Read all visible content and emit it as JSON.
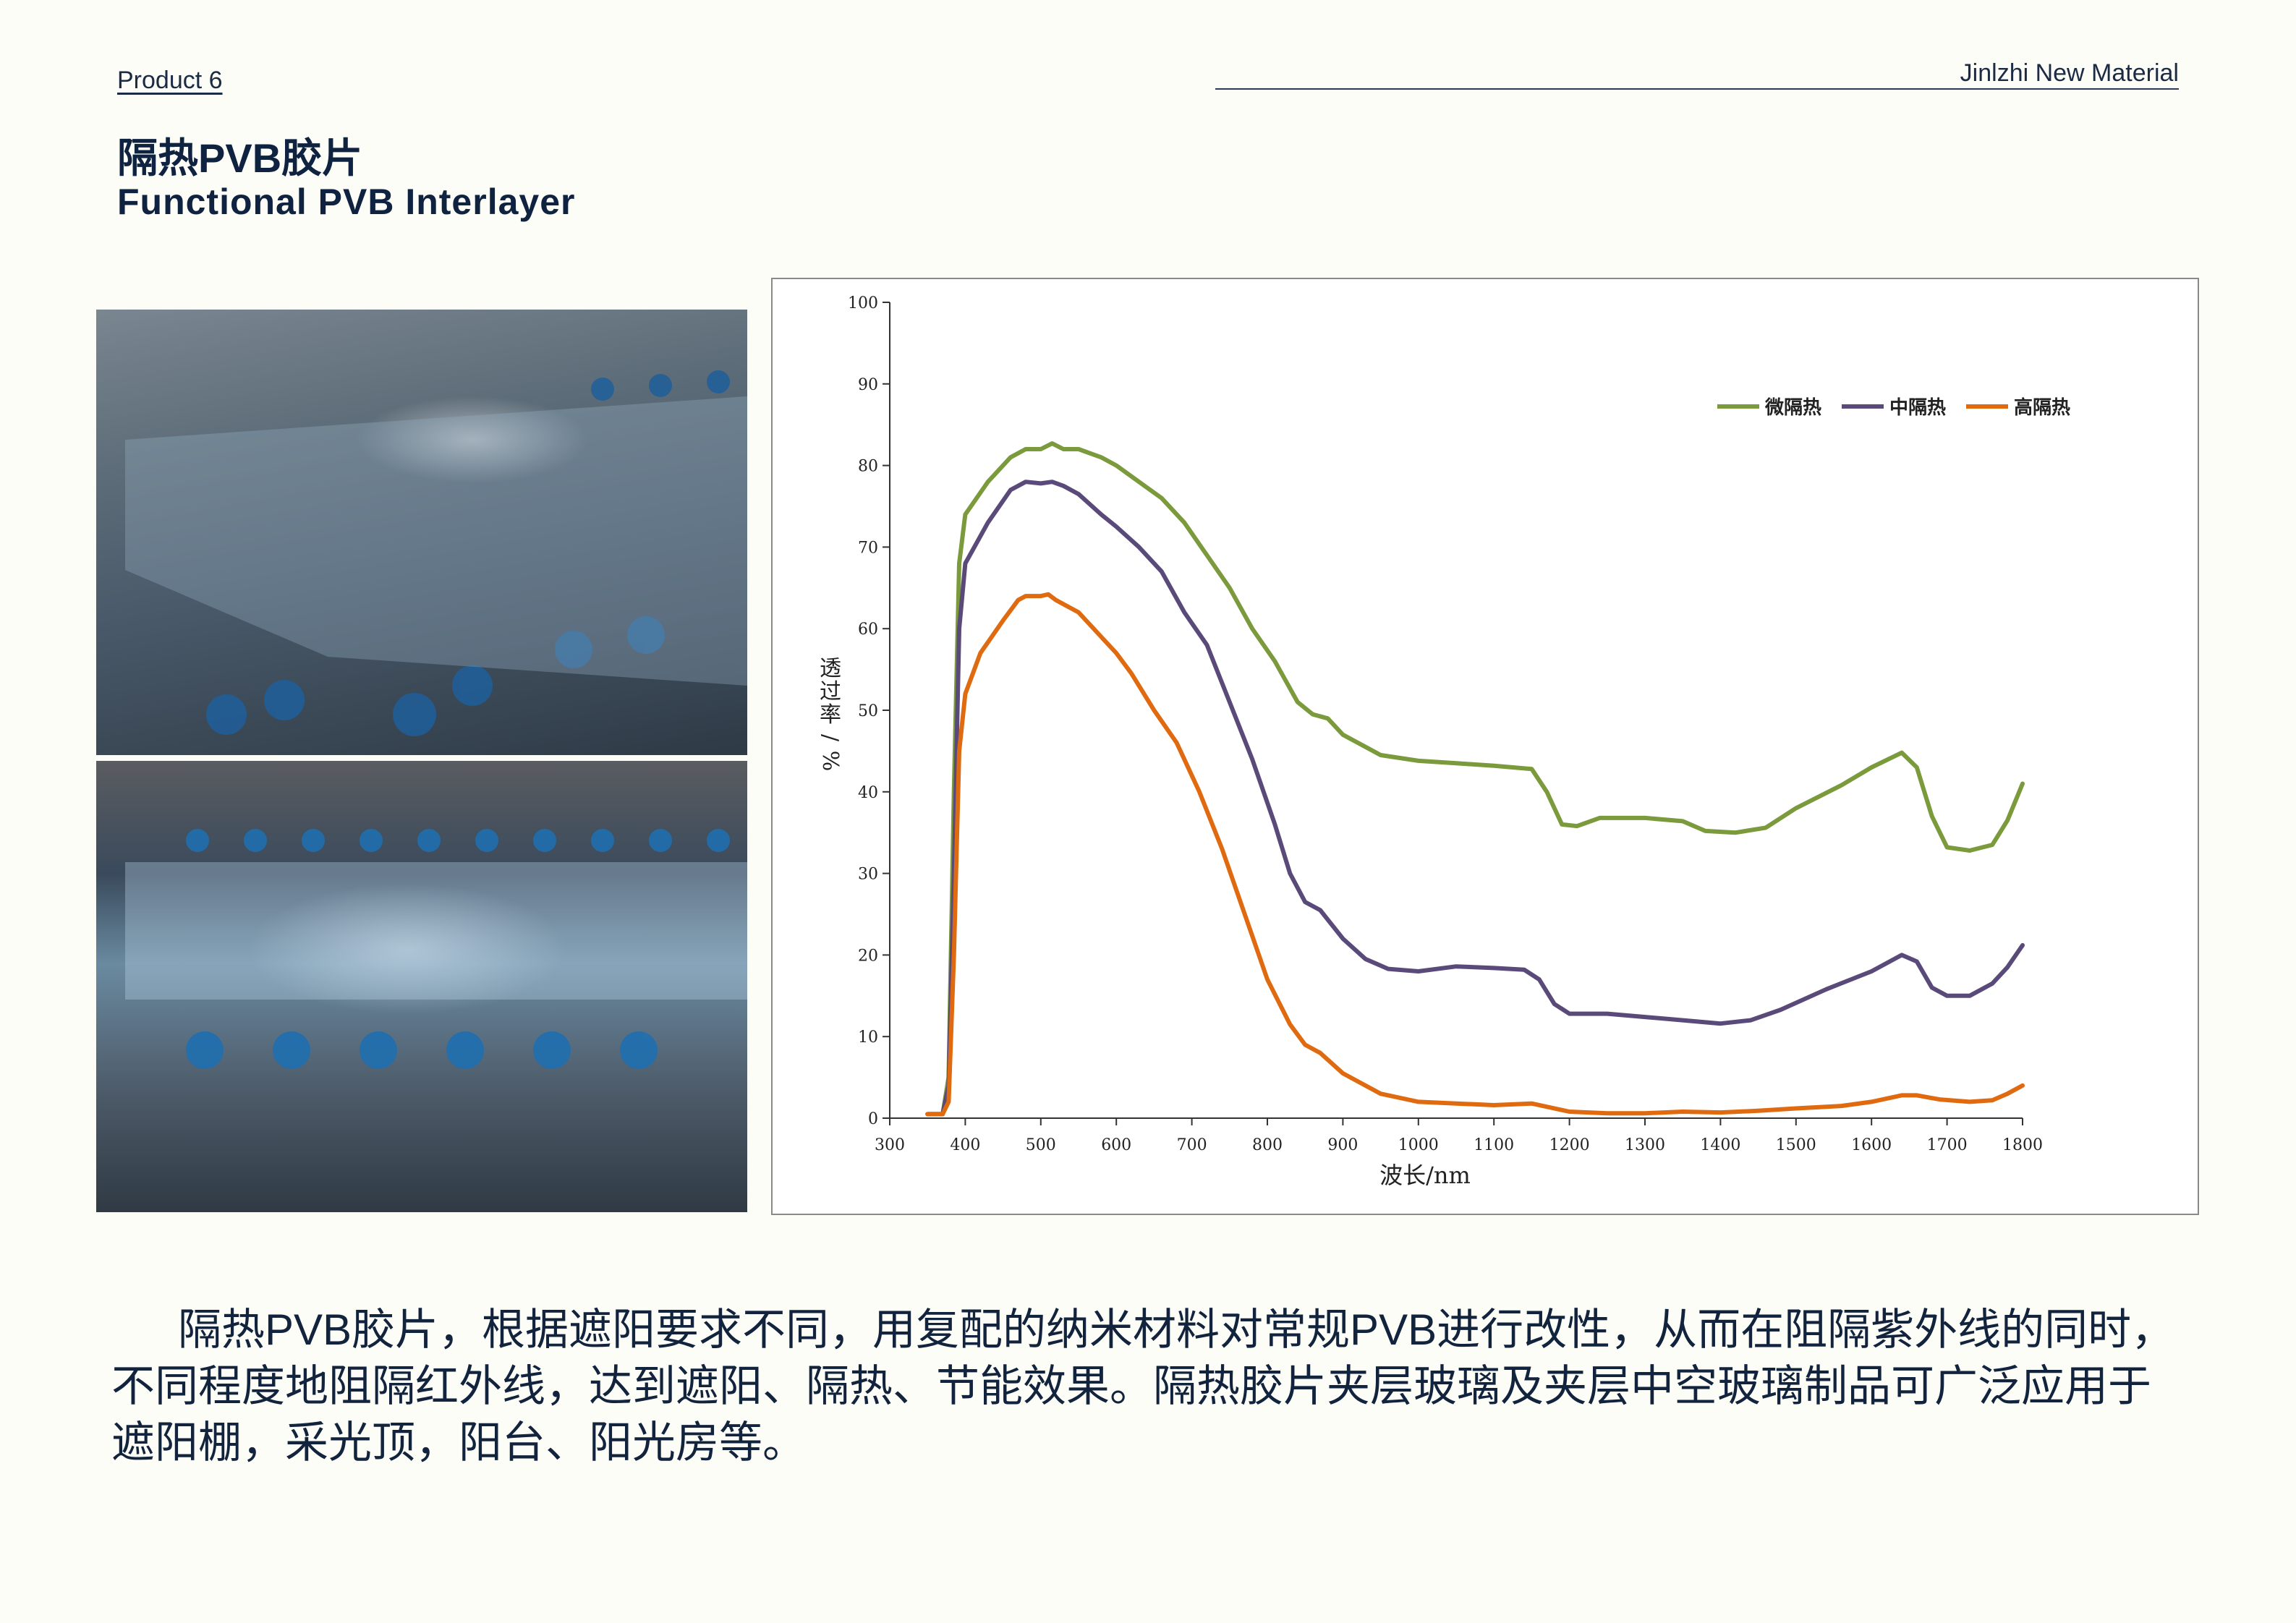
{
  "header": {
    "product_label": "Product 6",
    "company": "Jinlzhi New Material",
    "title_cn": "隔热PVB胶片",
    "title_en": "Functional PVB Interlayer"
  },
  "photos": [
    {
      "name": "glass-lamination-line-top"
    },
    {
      "name": "glass-lamination-line-bottom"
    }
  ],
  "chart_data": {
    "type": "line",
    "title": "",
    "xlabel": "波长/nm",
    "ylabel": "透过率/%",
    "xlim": [
      300,
      1800
    ],
    "ylim": [
      0,
      100
    ],
    "xticks": [
      300,
      400,
      500,
      600,
      700,
      800,
      900,
      1000,
      1100,
      1200,
      1300,
      1400,
      1500,
      1600,
      1700,
      1800
    ],
    "yticks": [
      0,
      10,
      20,
      30,
      40,
      50,
      60,
      70,
      80,
      90,
      100
    ],
    "grid": false,
    "legend_position": "top-right",
    "series": [
      {
        "name": "微隔热",
        "color": "#7a9a3c",
        "points": [
          [
            350,
            0.5
          ],
          [
            370,
            0.5
          ],
          [
            378,
            5
          ],
          [
            385,
            40
          ],
          [
            392,
            68
          ],
          [
            400,
            74
          ],
          [
            430,
            78
          ],
          [
            460,
            81
          ],
          [
            480,
            82
          ],
          [
            500,
            82
          ],
          [
            515,
            82.7
          ],
          [
            530,
            82
          ],
          [
            550,
            82
          ],
          [
            580,
            81
          ],
          [
            600,
            80
          ],
          [
            630,
            78
          ],
          [
            660,
            76
          ],
          [
            690,
            73
          ],
          [
            720,
            69
          ],
          [
            750,
            65
          ],
          [
            780,
            60
          ],
          [
            810,
            56
          ],
          [
            840,
            51
          ],
          [
            860,
            49.5
          ],
          [
            880,
            49
          ],
          [
            900,
            47
          ],
          [
            950,
            44.5
          ],
          [
            1000,
            43.8
          ],
          [
            1050,
            43.5
          ],
          [
            1100,
            43.2
          ],
          [
            1150,
            42.8
          ],
          [
            1170,
            40
          ],
          [
            1190,
            36
          ],
          [
            1210,
            35.8
          ],
          [
            1240,
            36.8
          ],
          [
            1300,
            36.8
          ],
          [
            1350,
            36.4
          ],
          [
            1380,
            35.2
          ],
          [
            1420,
            35
          ],
          [
            1460,
            35.6
          ],
          [
            1500,
            38
          ],
          [
            1560,
            40.8
          ],
          [
            1600,
            43
          ],
          [
            1640,
            44.8
          ],
          [
            1660,
            43
          ],
          [
            1680,
            37
          ],
          [
            1700,
            33.2
          ],
          [
            1730,
            32.8
          ],
          [
            1760,
            33.5
          ],
          [
            1780,
            36.5
          ],
          [
            1800,
            41
          ]
        ]
      },
      {
        "name": "中隔热",
        "color": "#5a4a7a",
        "points": [
          [
            350,
            0.5
          ],
          [
            370,
            0.5
          ],
          [
            378,
            4
          ],
          [
            385,
            30
          ],
          [
            392,
            60
          ],
          [
            400,
            68
          ],
          [
            430,
            73
          ],
          [
            460,
            77
          ],
          [
            480,
            78
          ],
          [
            500,
            77.8
          ],
          [
            515,
            78
          ],
          [
            530,
            77.5
          ],
          [
            550,
            76.5
          ],
          [
            580,
            74
          ],
          [
            600,
            72.5
          ],
          [
            630,
            70
          ],
          [
            660,
            67
          ],
          [
            690,
            62
          ],
          [
            720,
            58
          ],
          [
            750,
            51
          ],
          [
            780,
            44
          ],
          [
            810,
            36
          ],
          [
            830,
            30
          ],
          [
            850,
            26.5
          ],
          [
            870,
            25.5
          ],
          [
            900,
            22
          ],
          [
            930,
            19.5
          ],
          [
            960,
            18.3
          ],
          [
            1000,
            18
          ],
          [
            1050,
            18.6
          ],
          [
            1100,
            18.4
          ],
          [
            1140,
            18.2
          ],
          [
            1160,
            17
          ],
          [
            1180,
            14
          ],
          [
            1200,
            12.8
          ],
          [
            1250,
            12.8
          ],
          [
            1300,
            12.4
          ],
          [
            1350,
            12
          ],
          [
            1400,
            11.6
          ],
          [
            1440,
            12
          ],
          [
            1480,
            13.3
          ],
          [
            1540,
            15.8
          ],
          [
            1600,
            18
          ],
          [
            1640,
            20
          ],
          [
            1660,
            19.2
          ],
          [
            1680,
            16
          ],
          [
            1700,
            15
          ],
          [
            1730,
            15
          ],
          [
            1760,
            16.5
          ],
          [
            1780,
            18.5
          ],
          [
            1800,
            21.2
          ]
        ]
      },
      {
        "name": "高隔热",
        "color": "#e06a10",
        "points": [
          [
            350,
            0.5
          ],
          [
            370,
            0.5
          ],
          [
            378,
            2
          ],
          [
            385,
            20
          ],
          [
            392,
            45
          ],
          [
            400,
            52
          ],
          [
            420,
            57
          ],
          [
            450,
            61
          ],
          [
            470,
            63.5
          ],
          [
            480,
            64
          ],
          [
            500,
            64
          ],
          [
            510,
            64.2
          ],
          [
            520,
            63.5
          ],
          [
            550,
            62
          ],
          [
            580,
            59
          ],
          [
            600,
            57
          ],
          [
            620,
            54.5
          ],
          [
            650,
            50
          ],
          [
            680,
            46
          ],
          [
            710,
            40
          ],
          [
            740,
            33
          ],
          [
            770,
            25
          ],
          [
            800,
            17
          ],
          [
            830,
            11.5
          ],
          [
            850,
            9
          ],
          [
            870,
            8
          ],
          [
            900,
            5.5
          ],
          [
            950,
            3
          ],
          [
            1000,
            2
          ],
          [
            1050,
            1.8
          ],
          [
            1100,
            1.6
          ],
          [
            1150,
            1.8
          ],
          [
            1200,
            0.8
          ],
          [
            1250,
            0.6
          ],
          [
            1300,
            0.6
          ],
          [
            1350,
            0.8
          ],
          [
            1400,
            0.7
          ],
          [
            1450,
            0.9
          ],
          [
            1500,
            1.2
          ],
          [
            1560,
            1.5
          ],
          [
            1600,
            2
          ],
          [
            1640,
            2.8
          ],
          [
            1660,
            2.8
          ],
          [
            1690,
            2.3
          ],
          [
            1730,
            2
          ],
          [
            1760,
            2.2
          ],
          [
            1780,
            3
          ],
          [
            1800,
            4
          ]
        ]
      }
    ]
  },
  "description": "隔热PVB胶片，根据遮阳要求不同，用复配的纳米材料对常规PVB进行改性，从而在阻隔紫外线的同时，不同程度地阻隔红外线，达到遮阳、隔热、节能效果。隔热胶片夹层玻璃及夹层中空玻璃制品可广泛应用于遮阳棚，采光顶，阳台、阳光房等。"
}
